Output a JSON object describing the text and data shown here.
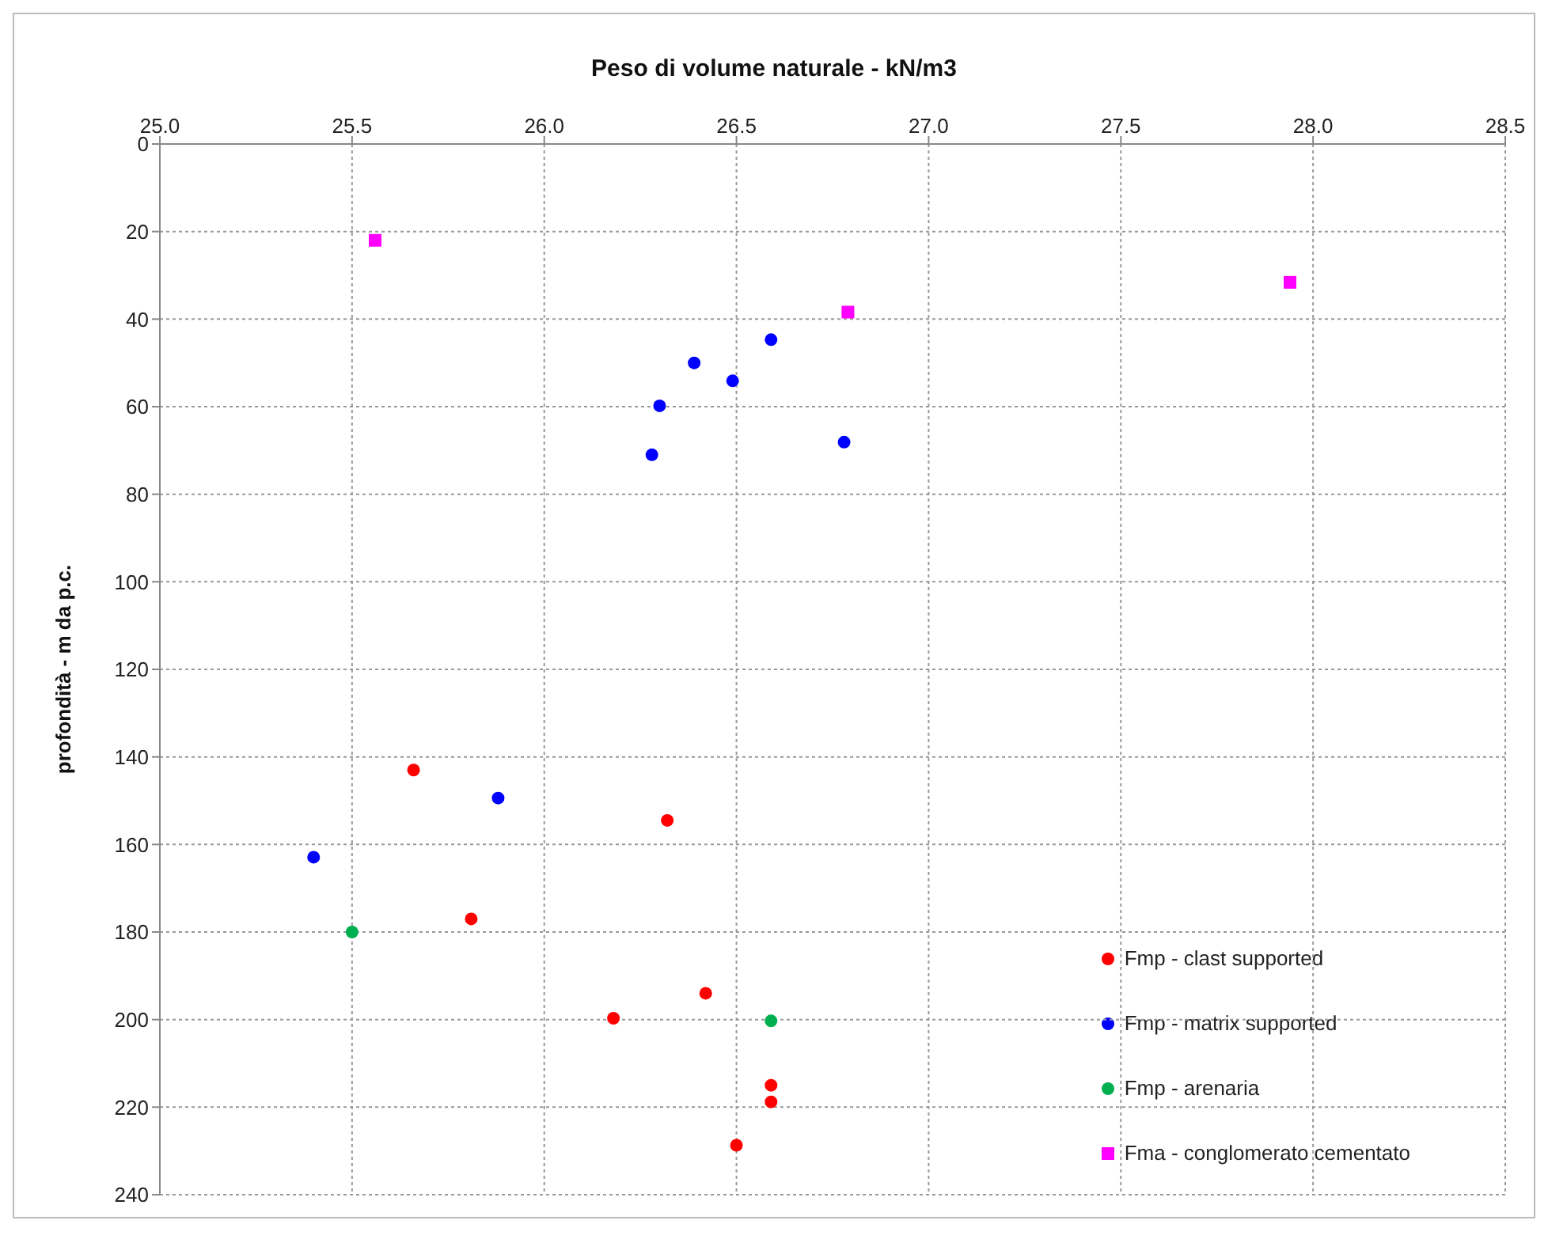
{
  "chart_data": {
    "type": "scatter",
    "title": "Peso di volume naturale - kN/m3",
    "ylabel": "profondità - m  da p.c.",
    "xlim": [
      25,
      28.5
    ],
    "xticks": [
      {
        "value": 25,
        "label": "25.0"
      },
      {
        "value": 25.5,
        "label": "25.5"
      },
      {
        "value": 26,
        "label": "26.0"
      },
      {
        "value": 26.5,
        "label": "26.5"
      },
      {
        "value": 27,
        "label": "27.0"
      },
      {
        "value": 27.5,
        "label": "27.5"
      },
      {
        "value": 28,
        "label": "28.0"
      },
      {
        "value": 28.5,
        "label": "28.5"
      }
    ],
    "ylim": [
      240,
      0
    ],
    "yticks": [
      0,
      20,
      40,
      60,
      80,
      100,
      120,
      140,
      160,
      180,
      200,
      220,
      240
    ],
    "grid": true,
    "legend": "bottom right",
    "series": [
      {
        "name": "Fmp - clast supported",
        "color": "#ff0000",
        "marker": "circle",
        "x": [
          25.66,
          26.32,
          25.81,
          26.42,
          26.18,
          26.59,
          26.59,
          26.5
        ],
        "values": [
          143,
          154.5,
          177,
          194,
          199.7,
          215,
          218.8,
          228.7
        ]
      },
      {
        "name": "Fmp - matrix supported",
        "color": "#0000ff",
        "marker": "circle",
        "x": [
          26.59,
          26.39,
          26.49,
          26.3,
          26.28,
          26.78,
          25.88,
          25.4
        ],
        "values": [
          44.7,
          50,
          54.1,
          59.8,
          71,
          68.1,
          149.4,
          162.9
        ]
      },
      {
        "name": "Fmp - arenaria",
        "color": "#00b050",
        "marker": "circle",
        "x": [
          25.5,
          26.59
        ],
        "values": [
          180,
          200.3
        ]
      },
      {
        "name": "Fma - conglomerato cementato",
        "color": "#ff00ff",
        "marker": "square",
        "x": [
          25.56,
          26.79,
          27.94
        ],
        "values": [
          22,
          38.4,
          31.6
        ]
      }
    ]
  }
}
